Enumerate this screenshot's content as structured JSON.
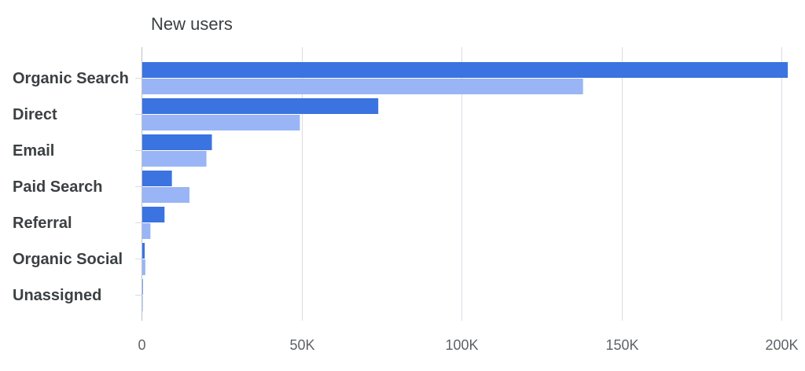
{
  "chart_data": {
    "type": "bar",
    "orientation": "horizontal",
    "title": "New users",
    "xlabel": "",
    "ylabel": "",
    "categories": [
      "Organic Search",
      "Direct",
      "Email",
      "Paid Search",
      "Referral",
      "Organic Social",
      "Unassigned"
    ],
    "series": [
      {
        "color": "#3b73e0",
        "values": [
          202000,
          74000,
          22000,
          9500,
          7200,
          1000,
          400
        ]
      },
      {
        "color": "#99b5f5",
        "values": [
          138000,
          49500,
          20300,
          15000,
          2800,
          1200,
          400
        ]
      }
    ],
    "xlim": [
      0,
      200000
    ],
    "x_ticks": [
      {
        "value": 0,
        "label": "0"
      },
      {
        "value": 50000,
        "label": "50K"
      },
      {
        "value": 100000,
        "label": "100K"
      },
      {
        "value": 150000,
        "label": "150K"
      },
      {
        "value": 200000,
        "label": "200K"
      }
    ],
    "grid": true,
    "legend": "none"
  }
}
